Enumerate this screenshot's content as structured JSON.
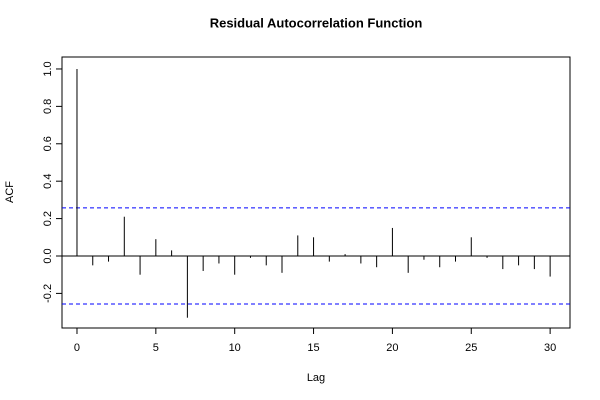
{
  "chart_data": {
    "type": "acf",
    "title": "Residual Autocorrelation Function",
    "x_label": "Lag",
    "y_label": "ACF",
    "x": [
      0,
      1,
      2,
      3,
      4,
      5,
      6,
      7,
      8,
      9,
      10,
      11,
      12,
      13,
      14,
      15,
      16,
      17,
      18,
      19,
      20,
      21,
      22,
      23,
      24,
      25,
      26,
      27,
      28,
      29,
      30
    ],
    "values": [
      1.0,
      -0.05,
      -0.03,
      0.21,
      -0.1,
      0.09,
      0.03,
      -0.33,
      -0.08,
      -0.04,
      -0.1,
      -0.01,
      -0.05,
      -0.09,
      0.11,
      0.1,
      -0.03,
      0.01,
      -0.04,
      -0.06,
      0.15,
      -0.09,
      -0.02,
      -0.06,
      -0.03,
      0.1,
      -0.01,
      -0.07,
      -0.05,
      -0.07,
      -0.11
    ],
    "color": "#000000",
    "confidence_limits": [
      0.257,
      -0.257
    ],
    "confidence_color": "#0000ff",
    "xlim": [
      -0.95,
      31.26
    ],
    "ylim": [
      -0.385,
      1.064
    ],
    "xticks": [
      0,
      5,
      10,
      15,
      20,
      25,
      30
    ],
    "yticks": [
      -0.2,
      {
        "value": 0,
        "label": "0.0"
      },
      0.2,
      0.4,
      0.6,
      0.8,
      {
        "value": 1,
        "label": "1.0"
      }
    ]
  }
}
